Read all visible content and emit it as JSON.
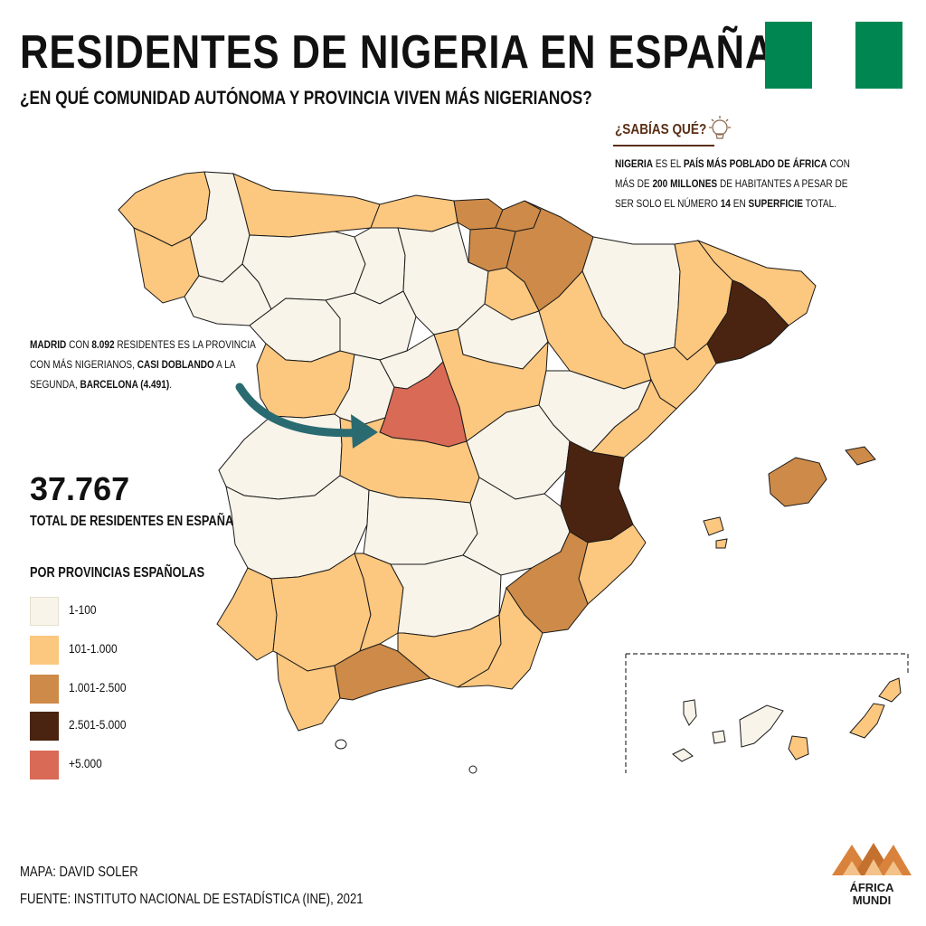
{
  "header": {
    "title": "RESIDENTES DE NIGERIA EN ESPAÑA",
    "subtitle": "¿EN QUÉ COMUNIDAD AUTÓNOMA Y PROVINCIA VIVEN MÁS NIGERIANOS?"
  },
  "colors": {
    "flag_green": "#008751",
    "arrow": "#2a6b72",
    "scale": [
      "#f8f4e9",
      "#fcc77f",
      "#cd8a48",
      "#4a2410",
      "#d86a56"
    ]
  },
  "did_you_know": {
    "title": "¿SABÍAS QUÉ?",
    "icon": "lightbulb-icon",
    "text_parts": [
      {
        "t": "NIGERIA",
        "b": true
      },
      {
        "t": " ES EL ",
        "b": false
      },
      {
        "t": "PAÍS MÁS POBLADO DE ÁFRICA",
        "b": true
      },
      {
        "t": " CON MÁS DE ",
        "b": false
      },
      {
        "t": "200 MILLONES",
        "b": true
      },
      {
        "t": " DE HABITANTES A PESAR DE SER SOLO EL NÚMERO ",
        "b": false
      },
      {
        "t": "14",
        "b": true
      },
      {
        "t": " EN ",
        "b": false
      },
      {
        "t": "SUPERFICIE",
        "b": true
      },
      {
        "t": " TOTAL.",
        "b": false
      }
    ]
  },
  "madrid_note": {
    "text_parts": [
      {
        "t": "MADRID",
        "b": true
      },
      {
        "t": " CON ",
        "b": false
      },
      {
        "t": "8.092",
        "b": true
      },
      {
        "t": " RESIDENTES ES LA PROVINCIA CON MÁS NIGERIANOS, ",
        "b": false
      },
      {
        "t": "CASI DOBLANDO",
        "b": true
      },
      {
        "t": " A LA SEGUNDA, ",
        "b": false
      },
      {
        "t": "BARCELONA (4.491)",
        "b": true
      },
      {
        "t": ".",
        "b": false
      }
    ]
  },
  "total": {
    "value": "37.767",
    "label": "TOTAL DE RESIDENTES EN ESPAÑA"
  },
  "legend": {
    "title": "POR PROVINCIAS ESPAÑOLAS",
    "items": [
      {
        "label": "1-100",
        "color": "#f8f4e9"
      },
      {
        "label": "101-1.000",
        "color": "#fcc77f"
      },
      {
        "label": "1.001-2.500",
        "color": "#cd8a48"
      },
      {
        "label": "2.501-5.000",
        "color": "#4a2410"
      },
      {
        "label": "+5.000",
        "color": "#d86a56"
      }
    ]
  },
  "credits": {
    "map": "MAPA: DAVID SOLER",
    "source": "FUENTE: INSTITUTO NACIONAL DE ESTADÍSTICA (INE), 2021"
  },
  "brand": {
    "name_line1": "ÁFRICA",
    "name_line2": "MUNDI"
  },
  "provinces": [
    {
      "name": "A Coruña",
      "cls": 1
    },
    {
      "name": "Lugo",
      "cls": 0
    },
    {
      "name": "Asturias",
      "cls": 1
    },
    {
      "name": "Cantabria",
      "cls": 1
    },
    {
      "name": "Bizkaia",
      "cls": 2
    },
    {
      "name": "Gipuzkoa",
      "cls": 2
    },
    {
      "name": "Navarra",
      "cls": 2
    },
    {
      "name": "Araba",
      "cls": 2
    },
    {
      "name": "Pontevedra",
      "cls": 1
    },
    {
      "name": "Ourense",
      "cls": 0
    },
    {
      "name": "León",
      "cls": 0
    },
    {
      "name": "Palencia",
      "cls": 0
    },
    {
      "name": "Burgos",
      "cls": 0
    },
    {
      "name": "La Rioja",
      "cls": 1
    },
    {
      "name": "Huesca",
      "cls": 0
    },
    {
      "name": "Lleida",
      "cls": 1
    },
    {
      "name": "Girona",
      "cls": 1
    },
    {
      "name": "Barcelona",
      "cls": 3
    },
    {
      "name": "Zamora",
      "cls": 0
    },
    {
      "name": "Valladolid",
      "cls": 0
    },
    {
      "name": "Soria",
      "cls": 0
    },
    {
      "name": "Zaragoza",
      "cls": 1
    },
    {
      "name": "Tarragona",
      "cls": 1
    },
    {
      "name": "Salamanca",
      "cls": 1
    },
    {
      "name": "Ávila",
      "cls": 0
    },
    {
      "name": "Segovia",
      "cls": 0
    },
    {
      "name": "Madrid",
      "cls": 4
    },
    {
      "name": "Guadalajara",
      "cls": 1
    },
    {
      "name": "Teruel",
      "cls": 0
    },
    {
      "name": "Castellón",
      "cls": 1
    },
    {
      "name": "Cáceres",
      "cls": 0
    },
    {
      "name": "Toledo",
      "cls": 1
    },
    {
      "name": "Cuenca",
      "cls": 0
    },
    {
      "name": "Valencia",
      "cls": 3
    },
    {
      "name": "Badajoz",
      "cls": 0
    },
    {
      "name": "Ciudad Real",
      "cls": 0
    },
    {
      "name": "Albacete",
      "cls": 0
    },
    {
      "name": "Alicante",
      "cls": 1
    },
    {
      "name": "Huelva",
      "cls": 1
    },
    {
      "name": "Sevilla",
      "cls": 1
    },
    {
      "name": "Córdoba",
      "cls": 1
    },
    {
      "name": "Jaén",
      "cls": 0
    },
    {
      "name": "Murcia",
      "cls": 2
    },
    {
      "name": "Cádiz",
      "cls": 1
    },
    {
      "name": "Málaga",
      "cls": 2
    },
    {
      "name": "Granada",
      "cls": 1
    },
    {
      "name": "Almería",
      "cls": 1
    },
    {
      "name": "Mallorca",
      "cls": 2
    },
    {
      "name": "Menorca",
      "cls": 2
    },
    {
      "name": "Ibiza",
      "cls": 1
    },
    {
      "name": "Formentera",
      "cls": 1
    },
    {
      "name": "La Palma",
      "cls": 0
    },
    {
      "name": "El Hierro",
      "cls": 0
    },
    {
      "name": "La Gomera",
      "cls": 0
    },
    {
      "name": "Tenerife",
      "cls": 0
    },
    {
      "name": "Gran Canaria",
      "cls": 1
    },
    {
      "name": "Fuerteventura",
      "cls": 1
    },
    {
      "name": "Lanzarote",
      "cls": 1
    }
  ]
}
